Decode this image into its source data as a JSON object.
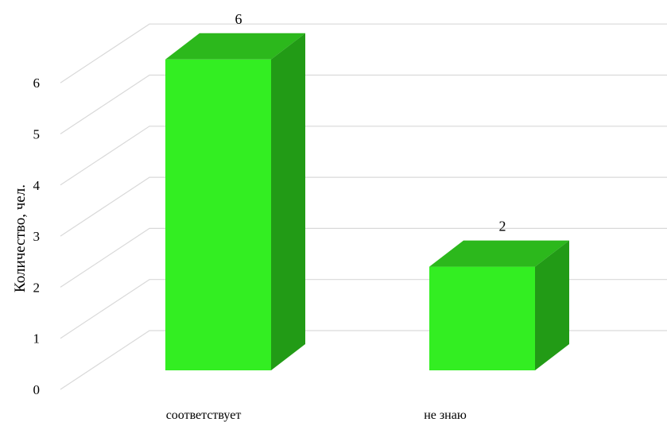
{
  "chart_data": {
    "type": "bar",
    "style": "3d-column",
    "categories": [
      "соответствует",
      "не знаю"
    ],
    "values": [
      6,
      2
    ],
    "data_labels": [
      "6",
      "2"
    ],
    "title": "",
    "xlabel": "",
    "ylabel": "Количество, чел.",
    "ylim": [
      0,
      6
    ],
    "yticks": [
      "0",
      "1",
      "2",
      "3",
      "4",
      "5",
      "6"
    ],
    "grid": true,
    "legend": "none",
    "colors": {
      "bar_front": "#33ee22",
      "bar_top": "#2cb81c",
      "bar_side": "#229b16",
      "grid": "#d9d9d9"
    }
  }
}
